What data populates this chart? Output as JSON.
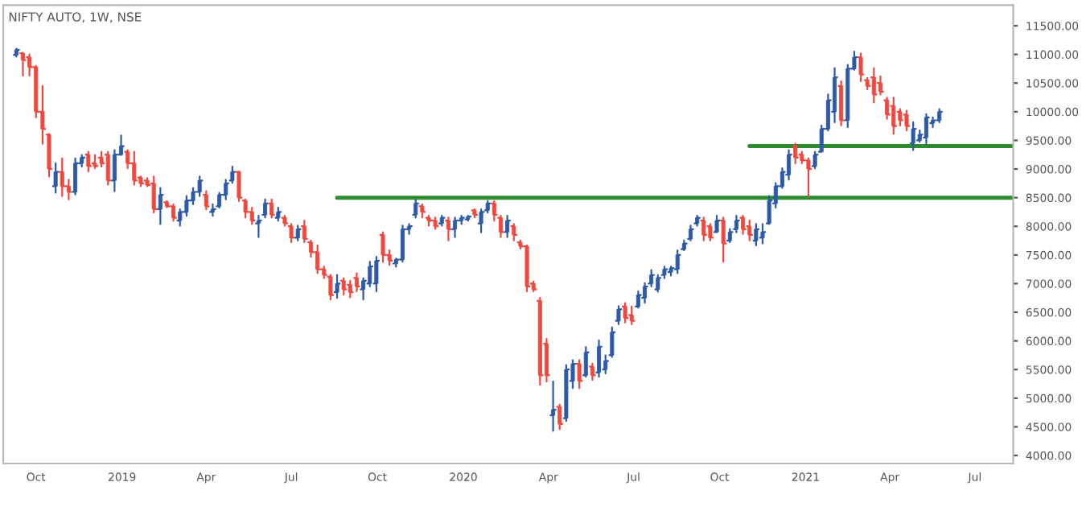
{
  "chart_data": {
    "type": "candlestick",
    "title": "NIFTY AUTO, 1W, NSE",
    "colors": [
      "#2d5aa8",
      "#f2473e",
      "#f2473e",
      "#f2473e",
      "#f2473e",
      "#f2473e",
      "#2d5aa8",
      "#f2473e",
      "#f2473e",
      "#2d5aa8",
      "#2d5aa8",
      "#f2473e",
      "#f2473e",
      "#f2473e",
      "#f2473e",
      "#2d5aa8",
      "#2d5aa8",
      "#f2473e",
      "#f2473e",
      "#f2473e",
      "#f2473e",
      "#f2473e",
      "#2d5aa8",
      "#f2473e",
      "#f2473e",
      "#2d5aa8",
      "#2d5aa8",
      "#2d5aa8",
      "#2d5aa8",
      "#f2473e",
      "#2d5aa8",
      "#2d5aa8",
      "#2d5aa8",
      "#2d5aa8",
      "#f2473e",
      "#f2473e",
      "#f2473e",
      "#2d5aa8",
      "#2d5aa8",
      "#f2473e",
      "#2d5aa8",
      "#f2473e",
      "#f2473e",
      "#2d5aa8",
      "#f2473e",
      "#f2473e",
      "#f2473e",
      "#f2473e",
      "#f2473e",
      "#2d5aa8",
      "#f2473e",
      "#f2473e",
      "#f2473e",
      "#2d5aa8",
      "#2d5aa8",
      "#2d5aa8",
      "#f2473e",
      "#f2473e",
      "#2d5aa8",
      "#2d5aa8",
      "#2d5aa8",
      "#2d5aa8",
      "#f2473e",
      "#f2473e",
      "#f2473e",
      "#2d5aa8",
      "#f2473e",
      "#2d5aa8",
      "#2d5aa8",
      "#2d5aa8",
      "#f2473e",
      "#2d5aa8",
      "#2d5aa8",
      "#f2473e",
      "#f2473e",
      "#2d5aa8",
      "#f2473e",
      "#f2473e",
      "#f2473e",
      "#f2473e",
      "#f2473e",
      "#f2473e",
      "#2d5aa8",
      "#f2473e",
      "#2d5aa8",
      "#2d5aa8",
      "#f2473e",
      "#2d5aa8",
      "#f2473e",
      "#2d5aa8",
      "#2d5aa8",
      "#2d5aa8",
      "#2d5aa8",
      "#f2473e",
      "#f2473e",
      "#2d5aa8",
      "#2d5aa8",
      "#2d5aa8",
      "#2d5aa8",
      "#2d5aa8",
      "#2d5aa8",
      "#2d5aa8",
      "#2d5aa8",
      "#2d5aa8",
      "#2d5aa8",
      "#f2473e",
      "#f2473e",
      "#2d5aa8",
      "#f2473e",
      "#2d5aa8",
      "#2d5aa8",
      "#f2473e",
      "#f2473e",
      "#2d5aa8",
      "#2d5aa8",
      "#2d5aa8",
      "#2d5aa8",
      "#2d5aa8",
      "#2d5aa8",
      "#f2473e",
      "#f2473e",
      "#f2473e",
      "#2d5aa8",
      "#2d5aa8",
      "#2d5aa8",
      "#2d5aa8",
      "#f2473e",
      "#2d5aa8",
      "#2d5aa8",
      "#f2473e",
      "#f2473e",
      "#f2473e",
      "#f2473e",
      "#f2473e",
      "#f2473e",
      "#f2473e",
      "#f2473e",
      "#2d5aa8",
      "#2d5aa8",
      "#2d5aa8",
      "#2d5aa8",
      "#2d5aa8"
    ],
    "x": [
      "2018-09-10",
      "2018-09-17",
      "2018-09-24",
      "2018-10-01",
      "2018-10-08",
      "2018-10-15",
      "2018-10-22",
      "2018-10-29",
      "2018-11-05",
      "2018-11-12",
      "2018-11-19",
      "2018-11-26",
      "2018-12-03",
      "2018-12-10",
      "2018-12-17",
      "2018-12-24",
      "2018-12-31",
      "2019-01-07",
      "2019-01-14",
      "2019-01-21",
      "2019-01-28",
      "2019-02-04",
      "2019-02-11",
      "2019-02-18",
      "2019-02-25",
      "2019-03-04",
      "2019-03-11",
      "2019-03-18",
      "2019-03-25",
      "2019-04-01",
      "2019-04-08",
      "2019-04-15",
      "2019-04-22",
      "2019-04-29",
      "2019-05-06",
      "2019-05-13",
      "2019-05-20",
      "2019-05-27",
      "2019-06-03",
      "2019-06-10",
      "2019-06-17",
      "2019-06-24",
      "2019-07-01",
      "2019-07-08",
      "2019-07-15",
      "2019-07-22",
      "2019-07-29",
      "2019-08-05",
      "2019-08-12",
      "2019-08-19",
      "2019-08-26",
      "2019-09-02",
      "2019-09-09",
      "2019-09-16",
      "2019-09-23",
      "2019-09-30",
      "2019-10-07",
      "2019-10-14",
      "2019-10-21",
      "2019-10-28",
      "2019-11-04",
      "2019-11-11",
      "2019-11-18",
      "2019-11-25",
      "2019-12-02",
      "2019-12-09",
      "2019-12-16",
      "2019-12-23",
      "2019-12-30",
      "2020-01-06",
      "2020-01-13",
      "2020-01-20",
      "2020-01-27",
      "2020-02-03",
      "2020-02-10",
      "2020-02-17",
      "2020-02-24",
      "2020-03-02",
      "2020-03-09",
      "2020-03-16",
      "2020-03-23",
      "2020-03-30",
      "2020-04-06",
      "2020-04-13",
      "2020-04-20",
      "2020-04-27",
      "2020-05-04",
      "2020-05-11",
      "2020-05-18",
      "2020-05-25",
      "2020-06-01",
      "2020-06-08",
      "2020-06-15",
      "2020-06-22",
      "2020-06-29",
      "2020-07-06",
      "2020-07-13",
      "2020-07-20",
      "2020-07-27",
      "2020-08-03",
      "2020-08-10",
      "2020-08-17",
      "2020-08-24",
      "2020-08-31",
      "2020-09-07",
      "2020-09-14",
      "2020-09-21",
      "2020-09-28",
      "2020-10-05",
      "2020-10-12",
      "2020-10-19",
      "2020-10-26",
      "2020-11-02",
      "2020-11-09",
      "2020-11-16",
      "2020-11-23",
      "2020-11-30",
      "2020-12-07",
      "2020-12-14",
      "2020-12-21",
      "2020-12-28",
      "2021-01-04",
      "2021-01-11",
      "2021-01-18",
      "2021-01-25",
      "2021-02-01",
      "2021-02-08",
      "2021-02-15",
      "2021-02-22",
      "2021-03-01",
      "2021-03-08",
      "2021-03-15",
      "2021-03-22",
      "2021-03-29",
      "2021-04-05",
      "2021-04-12",
      "2021-04-19",
      "2021-04-26",
      "2021-05-03",
      "2021-05-10",
      "2021-05-17",
      "2021-05-24"
    ],
    "ohlc": [
      [
        10990,
        11100,
        10960,
        11080
      ],
      [
        11020,
        11030,
        10630,
        10900
      ],
      [
        10950,
        11000,
        10630,
        10780
      ],
      [
        10780,
        10800,
        9900,
        10000
      ],
      [
        10000,
        10450,
        9440,
        9700
      ],
      [
        9600,
        9615,
        8870,
        9000
      ],
      [
        8700,
        9100,
        8585,
        8950
      ],
      [
        8950,
        9186,
        8527,
        8700
      ],
      [
        8700,
        8813,
        8470,
        8600
      ],
      [
        8600,
        9186,
        8556,
        9100
      ],
      [
        9100,
        9243,
        9042,
        9200
      ],
      [
        9250,
        9300,
        8957,
        9050
      ],
      [
        9100,
        9243,
        9014,
        9050
      ],
      [
        9200,
        9300,
        9042,
        9100
      ],
      [
        9250,
        9300,
        8727,
        8800
      ],
      [
        8800,
        9330,
        8613,
        9250
      ],
      [
        9250,
        9586,
        9243,
        9400
      ],
      [
        9300,
        9330,
        9014,
        9100
      ],
      [
        9100,
        9300,
        8727,
        8800
      ],
      [
        8850,
        8870,
        8700,
        8750
      ],
      [
        8800,
        8840,
        8700,
        8720
      ],
      [
        8750,
        8870,
        8240,
        8300
      ],
      [
        8300,
        8670,
        8040,
        8550
      ],
      [
        8420,
        8440,
        8330,
        8350
      ],
      [
        8350,
        8383,
        8097,
        8150
      ],
      [
        8100,
        8297,
        8011,
        8250
      ],
      [
        8250,
        8527,
        8183,
        8450
      ],
      [
        8450,
        8670,
        8383,
        8600
      ],
      [
        8600,
        8870,
        8527,
        8800
      ],
      [
        8550,
        8613,
        8297,
        8350
      ],
      [
        8250,
        8383,
        8183,
        8300
      ],
      [
        8350,
        8584,
        8326,
        8550
      ],
      [
        8550,
        8813,
        8470,
        8750
      ],
      [
        8800,
        9042,
        8756,
        8950
      ],
      [
        8950,
        8957,
        8440,
        8500
      ],
      [
        8450,
        8470,
        8154,
        8250
      ],
      [
        8250,
        8326,
        8040,
        8100
      ],
      [
        8050,
        8183,
        7810,
        8100
      ],
      [
        8200,
        8470,
        8154,
        8400
      ],
      [
        8400,
        8470,
        8154,
        8200
      ],
      [
        8150,
        8326,
        8097,
        8250
      ],
      [
        8150,
        8183,
        8011,
        8050
      ],
      [
        8000,
        8040,
        7724,
        7800
      ],
      [
        7800,
        8011,
        7753,
        7950
      ],
      [
        8000,
        8097,
        7724,
        7780
      ],
      [
        7720,
        7753,
        7467,
        7550
      ],
      [
        7550,
        7667,
        7180,
        7250
      ],
      [
        7250,
        7295,
        7094,
        7150
      ],
      [
        7120,
        7151,
        6722,
        6800
      ],
      [
        6850,
        7151,
        6750,
        7000
      ],
      [
        7050,
        7094,
        6808,
        6900
      ],
      [
        6980,
        7050,
        6760,
        6850
      ],
      [
        7100,
        7180,
        6865,
        6950
      ],
      [
        6900,
        7094,
        6722,
        7050
      ],
      [
        7000,
        7381,
        6951,
        7300
      ],
      [
        7000,
        7467,
        6865,
        7400
      ],
      [
        7850,
        7896,
        7381,
        7500
      ],
      [
        7500,
        7581,
        7324,
        7400
      ],
      [
        7350,
        7438,
        7295,
        7420
      ],
      [
        7420,
        8011,
        7381,
        7950
      ],
      [
        7950,
        8040,
        7868,
        8000
      ],
      [
        8200,
        8470,
        8154,
        8400
      ],
      [
        8350,
        8383,
        8154,
        8250
      ],
      [
        8150,
        8183,
        8011,
        8100
      ],
      [
        8100,
        8154,
        7954,
        8000
      ],
      [
        8050,
        8183,
        8011,
        8150
      ],
      [
        8100,
        8154,
        7753,
        7950
      ],
      [
        7950,
        8154,
        7810,
        8100
      ],
      [
        8100,
        8183,
        8040,
        8150
      ],
      [
        8120,
        8183,
        8097,
        8170
      ],
      [
        8280,
        8297,
        8154,
        8200
      ],
      [
        8050,
        8297,
        7896,
        8250
      ],
      [
        8280,
        8440,
        8240,
        8400
      ],
      [
        8400,
        8440,
        8097,
        8200
      ],
      [
        8150,
        8183,
        7810,
        7900
      ],
      [
        7900,
        8183,
        7810,
        8100
      ],
      [
        8000,
        8040,
        7753,
        7850
      ],
      [
        7720,
        7753,
        7610,
        7650
      ],
      [
        7650,
        7667,
        6865,
        6950
      ],
      [
        7000,
        7037,
        6865,
        6900
      ],
      [
        6700,
        6750,
        5232,
        5400
      ],
      [
        5950,
        6034,
        5290,
        5400
      ],
      [
        4700,
        5290,
        4430,
        4800
      ],
      [
        4850,
        4888,
        4459,
        4550
      ],
      [
        4650,
        5576,
        4602,
        5500
      ],
      [
        5300,
        5662,
        5175,
        5600
      ],
      [
        5600,
        5662,
        5175,
        5300
      ],
      [
        5400,
        5891,
        5375,
        5800
      ],
      [
        5550,
        5604,
        5318,
        5400
      ],
      [
        5450,
        6006,
        5375,
        5900
      ],
      [
        5500,
        5748,
        5432,
        5650
      ],
      [
        5750,
        6235,
        5719,
        6150
      ],
      [
        6350,
        6607,
        6292,
        6550
      ],
      [
        6600,
        6660,
        6320,
        6400
      ],
      [
        6450,
        6600,
        6290,
        6350
      ],
      [
        6600,
        6865,
        6578,
        6800
      ],
      [
        6750,
        7008,
        6664,
        6950
      ],
      [
        7000,
        7237,
        6951,
        7150
      ],
      [
        6900,
        7150,
        6860,
        7100
      ],
      [
        7150,
        7295,
        7094,
        7250
      ],
      [
        7200,
        7295,
        7140,
        7270
      ],
      [
        7250,
        7581,
        7180,
        7500
      ],
      [
        7600,
        7753,
        7581,
        7700
      ],
      [
        7780,
        8011,
        7753,
        7950
      ],
      [
        8050,
        8183,
        8011,
        8150
      ],
      [
        8100,
        8154,
        7753,
        7850
      ],
      [
        8000,
        8040,
        7753,
        7800
      ],
      [
        7900,
        8183,
        7896,
        8100
      ],
      [
        8100,
        8154,
        7381,
        7700
      ],
      [
        7750,
        7954,
        7724,
        7900
      ],
      [
        7950,
        8183,
        7896,
        8100
      ],
      [
        8150,
        8183,
        7868,
        7950
      ],
      [
        8000,
        8100,
        7753,
        7850
      ],
      [
        7750,
        8040,
        7667,
        7950
      ],
      [
        7800,
        8040,
        7700,
        7900
      ],
      [
        8050,
        8527,
        8040,
        8450
      ],
      [
        8400,
        8756,
        8326,
        8700
      ],
      [
        8700,
        9014,
        8670,
        8950
      ],
      [
        8900,
        9330,
        8813,
        9250
      ],
      [
        9400,
        9443,
        9100,
        9200
      ],
      [
        9250,
        9300,
        9100,
        9150
      ],
      [
        9150,
        9186,
        8527,
        9000
      ],
      [
        9050,
        9300,
        9014,
        9250
      ],
      [
        9300,
        9759,
        9300,
        9700
      ],
      [
        9700,
        10303,
        9673,
        10200
      ],
      [
        10000,
        10761,
        9816,
        10600
      ],
      [
        10450,
        10532,
        9759,
        9850
      ],
      [
        9850,
        10819,
        9730,
        10750
      ],
      [
        10750,
        11048,
        10733,
        10950
      ],
      [
        10950,
        11019,
        10532,
        10650
      ],
      [
        10550,
        10590,
        10390,
        10450
      ],
      [
        10600,
        10761,
        10160,
        10300
      ],
      [
        10500,
        10617,
        10300,
        10350
      ],
      [
        10200,
        10246,
        9873,
        9950
      ],
      [
        10100,
        10246,
        9615,
        9750
      ],
      [
        10000,
        10045,
        9759,
        9850
      ],
      [
        9950,
        10016,
        9673,
        9750
      ],
      [
        9450,
        9816,
        9330,
        9700
      ],
      [
        9500,
        9673,
        9472,
        9600
      ],
      [
        9550,
        9959,
        9443,
        9900
      ],
      [
        9800,
        9902,
        9730,
        9850
      ],
      [
        9850,
        10045,
        9816,
        10000
      ]
    ],
    "series": [
      {
        "type": "line",
        "color": "#2e8b2e",
        "x": [
          "2019-08-19",
          "2021-08-11"
        ],
        "values": [
          8500,
          8500
        ]
      },
      {
        "type": "line",
        "color": "#2e8b2e",
        "x": [
          "2020-11-02",
          "2021-08-11"
        ],
        "values": [
          9400,
          9400
        ]
      }
    ],
    "xlim": [
      "2018-08-27",
      "2021-08-11"
    ],
    "xticks": [
      {
        "value": "2018-10-01",
        "label": "Oct"
      },
      {
        "value": "2019-01-01",
        "label": "2019"
      },
      {
        "value": "2019-04-01",
        "label": "Apr"
      },
      {
        "value": "2019-07-01",
        "label": "Jul"
      },
      {
        "value": "2019-10-01",
        "label": "Oct"
      },
      {
        "value": "2020-01-01",
        "label": "2020"
      },
      {
        "value": "2020-04-01",
        "label": "Apr"
      },
      {
        "value": "2020-07-01",
        "label": "Jul"
      },
      {
        "value": "2020-10-01",
        "label": "Oct"
      },
      {
        "value": "2021-01-01",
        "label": "2021"
      },
      {
        "value": "2021-04-01",
        "label": "Apr"
      },
      {
        "value": "2021-07-01",
        "label": "Jul"
      }
    ],
    "ylim": [
      3860,
      11860
    ],
    "yticks": [
      {
        "value": 4000,
        "label": "4000.00"
      },
      {
        "value": 4500,
        "label": "4500.00"
      },
      {
        "value": 5000,
        "label": "5000.00"
      },
      {
        "value": 5500,
        "label": "5500.00"
      },
      {
        "value": 6000,
        "label": "6000.00"
      },
      {
        "value": 6500,
        "label": "6500.00"
      },
      {
        "value": 7000,
        "label": "7000.00"
      },
      {
        "value": 7500,
        "label": "7500.00"
      },
      {
        "value": 8000,
        "label": "8000.00"
      },
      {
        "value": 8500,
        "label": "8500.00"
      },
      {
        "value": 9000,
        "label": "9000.00"
      },
      {
        "value": 9500,
        "label": "9500.00"
      },
      {
        "value": 10000,
        "label": "10000.00"
      },
      {
        "value": 10500,
        "label": "10500.00"
      },
      {
        "value": 11000,
        "label": "11000.00"
      },
      {
        "value": 11500,
        "label": "11500.00"
      }
    ]
  }
}
